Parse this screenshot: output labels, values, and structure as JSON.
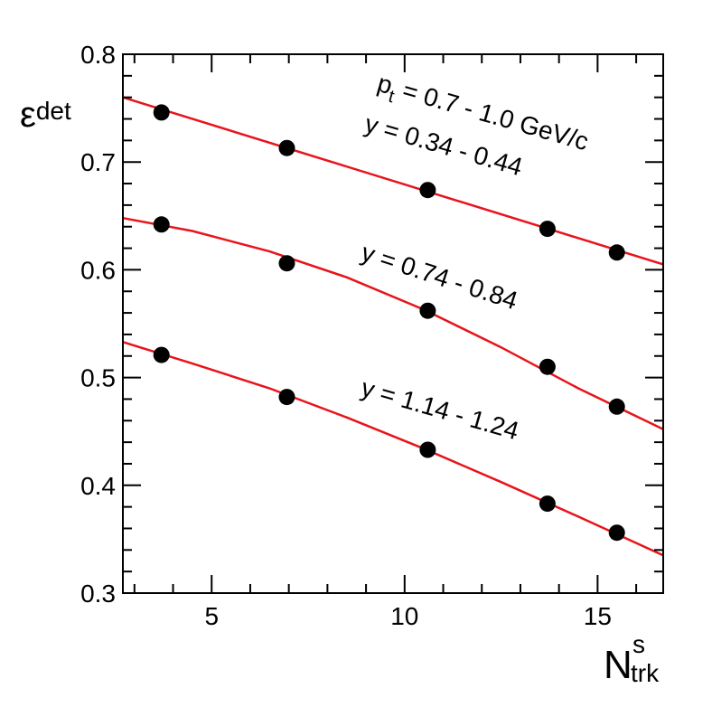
{
  "chart_data": {
    "type": "scatter",
    "xlim": [
      2.7,
      16.7
    ],
    "ylim": [
      0.3,
      0.8
    ],
    "x_major_ticks": [
      5,
      10,
      15
    ],
    "y_major_ticks": [
      0.3,
      0.4,
      0.5,
      0.6,
      0.7,
      0.8
    ],
    "x_tick_labels": [
      "5",
      "10",
      "15"
    ],
    "y_tick_labels": [
      "0.3",
      "0.4",
      "0.5",
      "0.6",
      "0.7",
      "0.8"
    ],
    "xlabel": {
      "main": "N",
      "sup": "s",
      "sub": "trk"
    },
    "ylabel": {
      "main": "ε",
      "sub": "det"
    },
    "grid": false,
    "colors": {
      "points": "#000000",
      "fit": "#e8141b",
      "axes": "#000000"
    },
    "series": [
      {
        "x": [
          3.7,
          6.95,
          10.6,
          13.7,
          15.5
        ],
        "y": [
          0.746,
          0.713,
          0.674,
          0.638,
          0.616
        ],
        "fit_x": [
          2.7,
          16.7
        ],
        "fit_y": [
          0.76,
          0.605
        ],
        "label_lines": [
          "p_t = 0.7 - 1.0 GeV/c",
          "y = 0.34 - 0.44"
        ]
      },
      {
        "x": [
          3.7,
          6.95,
          10.6,
          13.7,
          15.5
        ],
        "y": [
          0.642,
          0.606,
          0.562,
          0.51,
          0.473
        ],
        "fit_x": [
          2.7,
          4.5,
          6.5,
          8.5,
          10.5,
          12.5,
          14.5,
          16.7
        ],
        "fit_y": [
          0.648,
          0.636,
          0.617,
          0.593,
          0.563,
          0.528,
          0.49,
          0.452
        ],
        "label_lines": [
          "y = 0.74 - 0.84"
        ]
      },
      {
        "x": [
          3.7,
          6.95,
          10.6,
          13.7,
          15.5
        ],
        "y": [
          0.521,
          0.482,
          0.433,
          0.383,
          0.356
        ],
        "fit_x": [
          2.7,
          4.5,
          6.5,
          8.5,
          10.5,
          12.5,
          14.5,
          16.7
        ],
        "fit_y": [
          0.533,
          0.513,
          0.49,
          0.463,
          0.434,
          0.403,
          0.371,
          0.335
        ],
        "label_lines": [
          "y = 1.14 - 1.24"
        ]
      }
    ]
  }
}
